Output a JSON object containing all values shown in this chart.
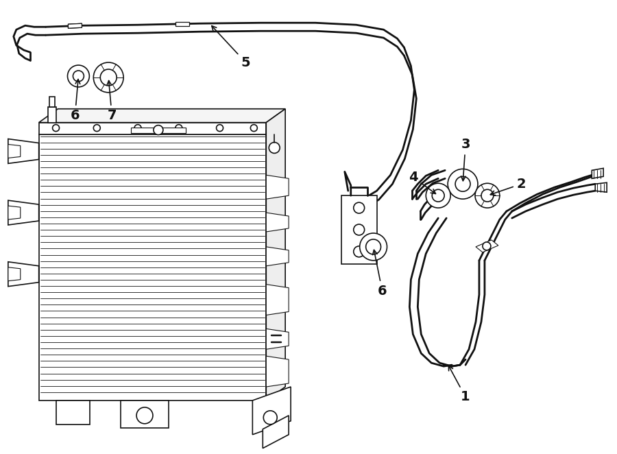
{
  "bg_color": "#ffffff",
  "line_color": "#111111",
  "figsize": [
    9.0,
    6.62
  ],
  "dpi": 100,
  "lw_pipe": 2.0,
  "lw_body": 1.2,
  "lw_fin": 0.6,
  "lw_detail": 0.9,
  "label_fontsize": 14,
  "arrow_lw": 1.2
}
